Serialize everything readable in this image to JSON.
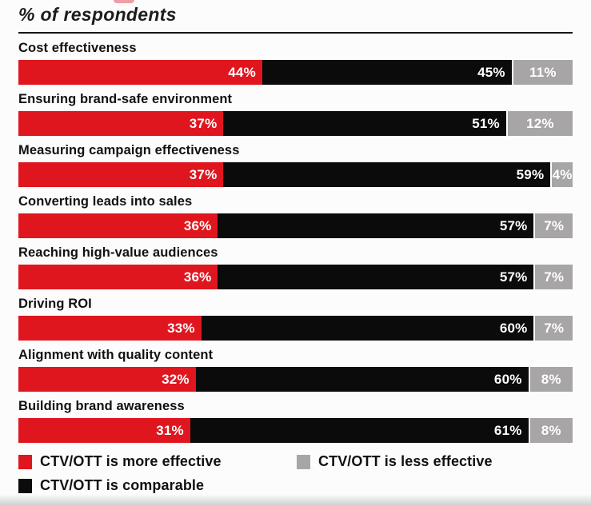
{
  "title": "% of respondents",
  "chart_data": {
    "type": "bar",
    "variant": "horizontal-stacked",
    "title": "% of respondents",
    "value_suffix": "%",
    "xlim": [
      0,
      100
    ],
    "grid": false,
    "legend_position": "bottom",
    "categories": [
      "Cost effectiveness",
      "Ensuring brand-safe environment",
      "Measuring campaign effectiveness",
      "Converting leads into sales",
      "Reaching high-value audiences",
      "Driving ROI",
      "Alignment with quality content",
      "Building brand awareness"
    ],
    "series": [
      {
        "name": "CTV/OTT is more effective",
        "color": "#e0161f",
        "values": [
          44,
          37,
          37,
          36,
          36,
          33,
          32,
          31
        ]
      },
      {
        "name": "CTV/OTT is comparable",
        "color": "#0b0b0b",
        "values": [
          45,
          51,
          59,
          57,
          57,
          60,
          60,
          61
        ]
      },
      {
        "name": "CTV/OTT is less effective",
        "color": "#a7a5a6",
        "values": [
          11,
          12,
          4,
          7,
          7,
          7,
          8,
          8
        ]
      }
    ]
  },
  "legend": {
    "items": [
      {
        "label": "CTV/OTT is more effective",
        "color": "#e0161f"
      },
      {
        "label": "CTV/OTT is less effective",
        "color": "#a7a5a6"
      },
      {
        "label": "CTV/OTT is comparable",
        "color": "#0b0b0b"
      }
    ]
  }
}
